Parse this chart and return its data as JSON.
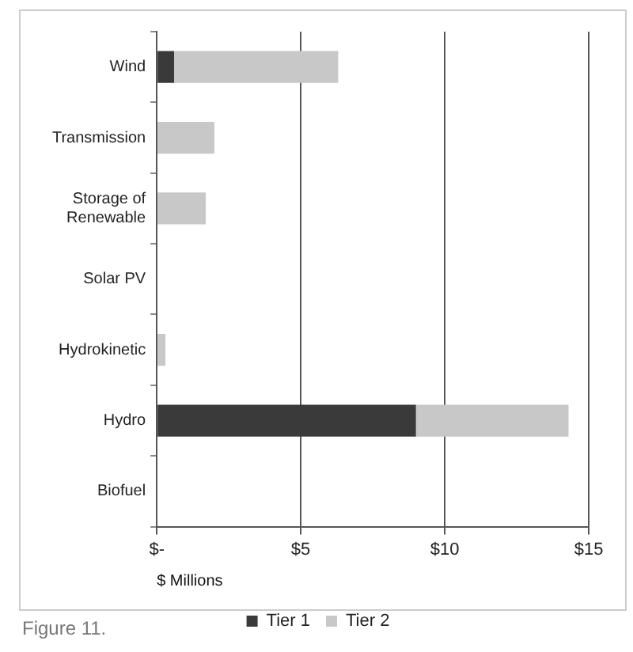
{
  "chart_data": {
    "type": "bar",
    "orientation": "horizontal",
    "stacked": true,
    "categories": [
      "Wind",
      "Transmission",
      "Storage of Renewable",
      "Solar PV",
      "Hydrokinetic",
      "Hydro",
      "Biofuel"
    ],
    "series": [
      {
        "name": "Tier 1",
        "color": "#3a3a3a",
        "values": [
          0.6,
          0,
          0,
          0,
          0,
          9.0,
          0
        ]
      },
      {
        "name": "Tier 2",
        "color": "#c8c8c8",
        "values": [
          5.7,
          2.0,
          1.7,
          0,
          0.3,
          5.3,
          0
        ]
      }
    ],
    "xlim": [
      0,
      15
    ],
    "xticks": [
      {
        "value": 0,
        "label": "$-"
      },
      {
        "value": 5,
        "label": "$5"
      },
      {
        "value": 10,
        "label": "$10"
      },
      {
        "value": 15,
        "label": "$15"
      }
    ],
    "xlabel": "$ Millions",
    "grid": "x",
    "legend": "bottom",
    "annotations": [
      "Figure 11."
    ]
  }
}
